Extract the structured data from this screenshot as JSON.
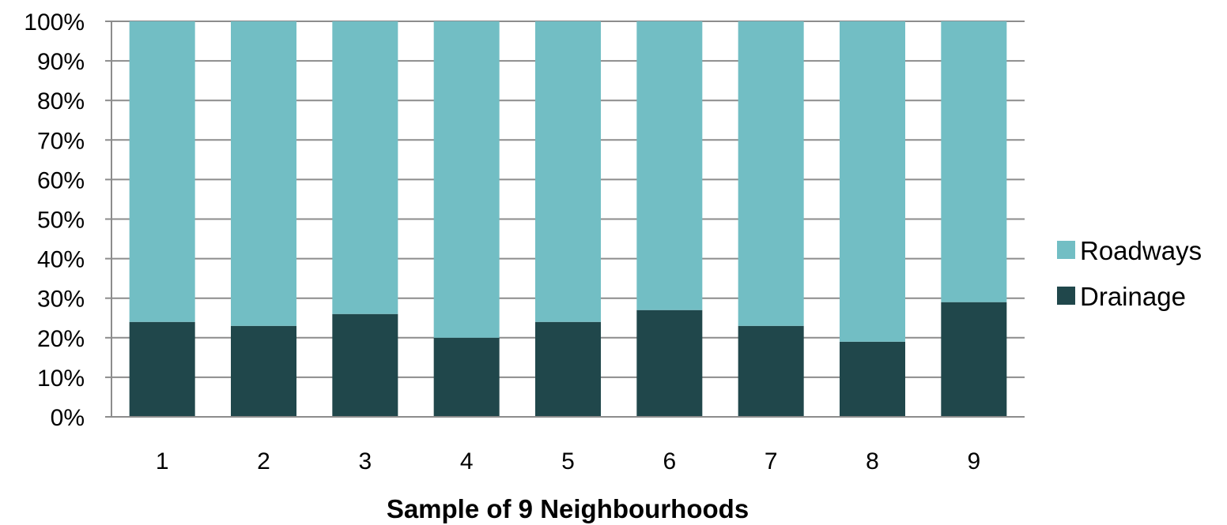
{
  "chart_data": {
    "type": "bar",
    "stacked": true,
    "percent_stacked": true,
    "title": "",
    "xlabel": "Sample of 9 Neighbourhoods",
    "ylabel": "",
    "categories": [
      "1",
      "2",
      "3",
      "4",
      "5",
      "6",
      "7",
      "8",
      "9"
    ],
    "series": [
      {
        "name": "Drainage",
        "color": "#20474b",
        "values": [
          24,
          23,
          26,
          20,
          24,
          27,
          23,
          19,
          29
        ]
      },
      {
        "name": "Roadways",
        "color": "#72bec4",
        "values": [
          76,
          77,
          74,
          80,
          76,
          73,
          77,
          81,
          71
        ]
      }
    ],
    "ylim": [
      0,
      100
    ],
    "y_ticks": [
      "0%",
      "10%",
      "20%",
      "30%",
      "40%",
      "50%",
      "60%",
      "70%",
      "80%",
      "90%",
      "100%"
    ],
    "grid": true,
    "legend_placement": "right",
    "legend_order": [
      "Roadways",
      "Drainage"
    ],
    "gridline_color": "#8c8c8c"
  }
}
